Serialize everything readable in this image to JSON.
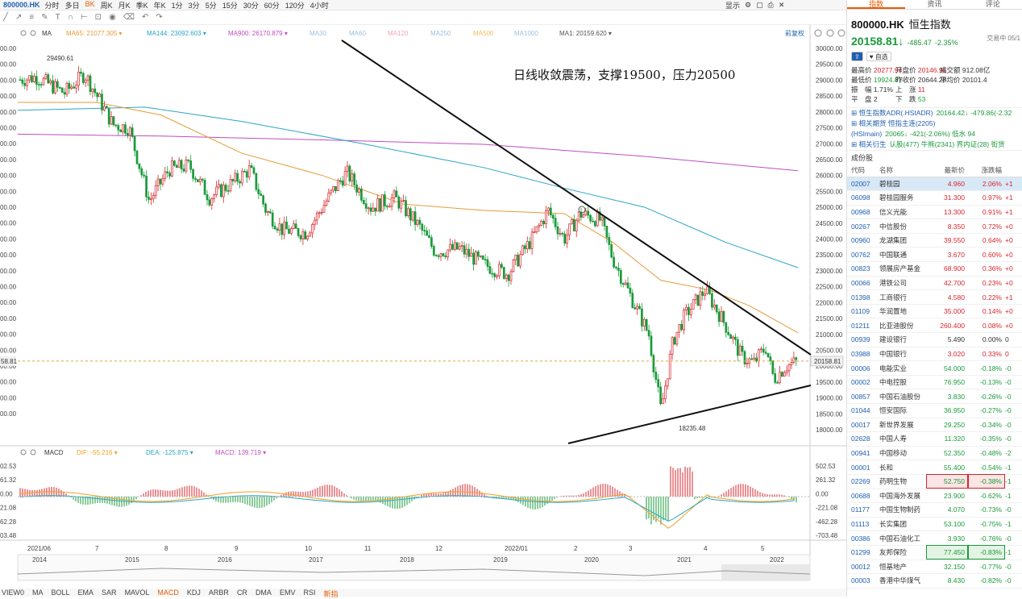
{
  "topbar": {
    "symbol": "800000.HK",
    "items": [
      "分时",
      "多日",
      "BK",
      "周K",
      "月K",
      "季K",
      "年K",
      "1分",
      "3分",
      "5分",
      "15分",
      "30分",
      "60分",
      "120分",
      "4小时"
    ],
    "active": "BK",
    "display": "显示"
  },
  "toolbar": {
    "icons": [
      "trend-line-icon",
      "arrow-icon",
      "fib-icon",
      "brush-icon",
      "text-icon",
      "magnet-icon",
      "ruler-icon",
      "lock-icon",
      "eye-icon",
      "delete-icon",
      "undo-icon",
      "redo-icon"
    ]
  },
  "legend_main": {
    "type": "MA",
    "items": [
      {
        "label": "MA65: 21077.305",
        "color": "#e59b39"
      },
      {
        "label": "MA144: 23092.603",
        "color": "#2aa5c5"
      },
      {
        "label": "MA900: 26170.879",
        "color": "#c04dc0"
      },
      {
        "label": "MA30",
        "color": "#9ec1de"
      },
      {
        "label": "MA60",
        "color": "#9ec1de"
      },
      {
        "label": "MA120",
        "color": "#f4a6b6"
      },
      {
        "label": "MA250",
        "color": "#9ec1de"
      },
      {
        "label": "MA500",
        "color": "#f0c060"
      },
      {
        "label": "MA1000",
        "color": "#9ec1de"
      },
      {
        "label": "MA1: 20159.620",
        "color": "#555555"
      }
    ],
    "right": "前复权"
  },
  "legend_macd": {
    "type": "MACD",
    "items": [
      {
        "label": "DIF: -55.216",
        "color": "#f0a020"
      },
      {
        "label": "DEA: -125.875",
        "color": "#2aa5c5"
      },
      {
        "label": "MACD: 139.719",
        "color": "#c04dc0"
      }
    ]
  },
  "annotation": "日线收敛震荡，支撑19500，压力20500",
  "high_label": "29490.61",
  "low_label": "18235.48",
  "price_label": "20158.81",
  "left_axis": [
    "00.00",
    "00.00",
    "00.00",
    "00.00",
    "00.00",
    "00.00",
    "00.00",
    "00.00",
    "00.00",
    "00.00",
    "00.00",
    "00.00",
    "00.00",
    "00.00",
    "00.00",
    "00.00",
    "00.00",
    "00.00",
    "00.00",
    "00.00",
    "00.00",
    "00.00",
    "00.00",
    "00.00"
  ],
  "left_price": "58.81",
  "macd_left_axis": [
    "02.53",
    "61.32",
    "0.00",
    "21.08",
    "62.28",
    "03.48"
  ],
  "chart_data": {
    "type": "candlestick",
    "title": "800000.HK 恒生指数",
    "yaxis": [
      "30000.00",
      "29500.00",
      "29000.00",
      "28500.00",
      "28000.00",
      "27500.00",
      "27000.00",
      "26500.00",
      "26000.00",
      "25500.00",
      "25000.00",
      "24500.00",
      "24000.00",
      "23500.00",
      "23000.00",
      "22500.00",
      "22000.00",
      "21500.00",
      "21000.00",
      "20500.00",
      "20000.00",
      "19500.00",
      "19000.00",
      "18500.00",
      "18000.00"
    ],
    "ylim": [
      17800,
      30100
    ],
    "xaxis_months": [
      "2021/06",
      "7",
      "8",
      "9",
      "10",
      "11",
      "12",
      "2022/01",
      "2",
      "3",
      "4",
      "5"
    ],
    "overview_years": [
      "2014",
      "2015",
      "2016",
      "2017",
      "2018",
      "2019",
      "2020",
      "2021",
      "2022"
    ],
    "high": 29490.61,
    "low": 18235.48,
    "last": 20158.81,
    "support": 19500,
    "resistance": 20500,
    "macd_yaxis": [
      "502.53",
      "261.32",
      "0.00",
      "-221.08",
      "-462.28",
      "-703.48"
    ],
    "indicators": {
      "MA65": 21077.305,
      "MA144": 23092.603,
      "MA900": 26170.879,
      "MA1": 20159.62,
      "DIF": -55.216,
      "DEA": -125.875,
      "MACD": 139.719
    }
  },
  "bottom_tabs": [
    "VIEW0",
    "MA",
    "BOLL",
    "EMA",
    "SAR",
    "MAVOL",
    "MACD",
    "KDJ",
    "ARBR",
    "CR",
    "DMA",
    "EMV",
    "RSI",
    "新指"
  ],
  "bottom_active": "MACD",
  "right_tabs": [
    "指数",
    "资讯",
    "评论"
  ],
  "quote": {
    "code": "800000.HK",
    "name": "恒生指数",
    "price": "20158.81",
    "arrow": "↓",
    "change": "-485.47",
    "pct": "-2.35%",
    "time": "交易中 05/1",
    "buttons": [
      "自选"
    ],
    "stats": [
      [
        "最高价",
        "20277.94",
        "开盘价",
        "20146.96",
        "成交额",
        "912.08亿"
      ],
      [
        "最低价",
        "19924.87",
        "昨收价",
        "20644.28",
        "平均价",
        "20101.4"
      ],
      [
        "振　幅",
        "1.71%",
        "上　涨",
        "11",
        "",
        ""
      ],
      [
        "平　盘",
        "2",
        "下　跌",
        "53",
        "",
        ""
      ]
    ],
    "related": [
      {
        "label": "恒生指数ADR(.HSIADR)",
        "value": "20164.42↓",
        "change": "-479.86(-2.32"
      },
      {
        "label": "相关期货 恒指主连(2205)(HSImain)",
        "value": "20065↓",
        "change": "-421(-2.06%) 低水 94"
      },
      {
        "label": "相关衍生",
        "value": "认股(477) 牛熊(2341) 界内证(28) 街货"
      }
    ]
  },
  "constituents": {
    "title": "成份股",
    "headers": [
      "代码",
      "名称",
      "最新价",
      "涨跌幅",
      ""
    ],
    "rows": [
      [
        "02007",
        "碧桂园",
        "4.960",
        "2.06%",
        "+1"
      ],
      [
        "06098",
        "碧桂园服务",
        "31.300",
        "0.97%",
        "+1"
      ],
      [
        "00968",
        "信义光能",
        "13.300",
        "0.91%",
        "+1"
      ],
      [
        "00267",
        "中信股份",
        "8.350",
        "0.72%",
        "+0"
      ],
      [
        "00960",
        "龙湖集团",
        "39.550",
        "0.64%",
        "+0"
      ],
      [
        "00762",
        "中国联通",
        "3.670",
        "0.60%",
        "+0"
      ],
      [
        "00823",
        "领展房产基金",
        "68.900",
        "0.36%",
        "+0"
      ],
      [
        "00066",
        "港铁公司",
        "42.700",
        "0.23%",
        "+0"
      ],
      [
        "01398",
        "工商银行",
        "4.580",
        "0.22%",
        "+1"
      ],
      [
        "01109",
        "华润置地",
        "35.000",
        "0.14%",
        "+0"
      ],
      [
        "01211",
        "比亚迪股份",
        "260.400",
        "0.08%",
        "+0"
      ],
      [
        "00939",
        "建设银行",
        "5.490",
        "0.00%",
        "0"
      ],
      [
        "03988",
        "中国银行",
        "3.020",
        "0.33%",
        "0"
      ],
      [
        "00006",
        "电能实业",
        "54.000",
        "-0.18%",
        "-0"
      ],
      [
        "00002",
        "中电控股",
        "76.950",
        "-0.13%",
        "-0"
      ],
      [
        "00857",
        "中国石油股份",
        "3.830",
        "-0.26%",
        "-0"
      ],
      [
        "01044",
        "恒安国际",
        "36.950",
        "-0.27%",
        "-0"
      ],
      [
        "00017",
        "新世界发展",
        "29.250",
        "-0.34%",
        "-0"
      ],
      [
        "02628",
        "中国人寿",
        "11.320",
        "-0.35%",
        "-0"
      ],
      [
        "00941",
        "中国移动",
        "52.350",
        "-0.48%",
        "-2"
      ],
      [
        "00001",
        "长和",
        "55.400",
        "-0.54%",
        "-1"
      ],
      [
        "02269",
        "药明生物",
        "52.750",
        "-0.38%",
        "-1"
      ],
      [
        "00688",
        "中国海外发展",
        "23.900",
        "-0.62%",
        "-1"
      ],
      [
        "01177",
        "中国生物制药",
        "4.070",
        "-0.73%",
        "-0"
      ],
      [
        "01113",
        "长实集团",
        "53.100",
        "-0.75%",
        "-1"
      ],
      [
        "00386",
        "中国石油化工",
        "3.930",
        "-0.76%",
        "-0"
      ],
      [
        "01299",
        "友邦保险",
        "77.450",
        "-0.83%",
        "-1"
      ],
      [
        "00012",
        "恒基地产",
        "32.150",
        "-0.77%",
        "-0"
      ],
      [
        "00003",
        "香港中华煤气",
        "8.430",
        "-0.82%",
        "-0"
      ]
    ]
  }
}
